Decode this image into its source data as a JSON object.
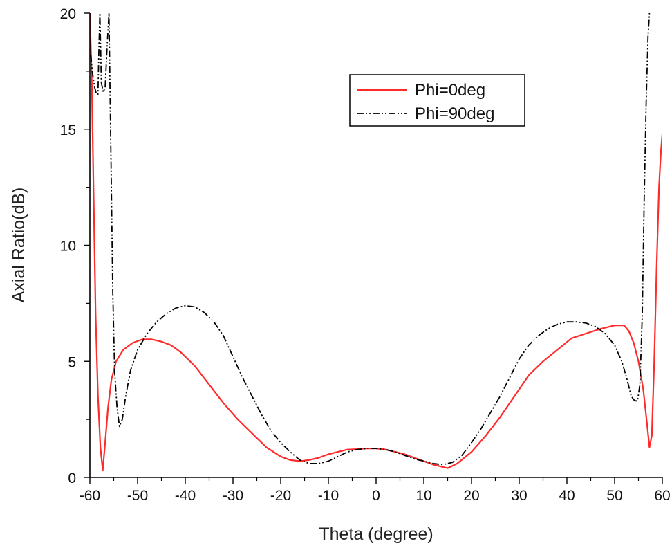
{
  "chart_data": {
    "type": "line",
    "xlabel": "Theta (degree)",
    "ylabel": "Axial Ratio(dB)",
    "xlim": [
      -60,
      60
    ],
    "ylim": [
      0,
      20
    ],
    "x_ticks": [
      -60,
      -50,
      -40,
      -30,
      -20,
      -10,
      0,
      10,
      20,
      30,
      40,
      50,
      60
    ],
    "y_ticks": [
      0,
      5,
      10,
      15,
      20
    ],
    "x_tick_labels": [
      "-60",
      "-50",
      "-40",
      "-30",
      "-20",
      "-10",
      "0",
      "10",
      "20",
      "30",
      "40",
      "50",
      "60"
    ],
    "y_tick_labels": [
      "0",
      "5",
      "10",
      "15",
      "20"
    ],
    "grid": false,
    "legend_position": "top-right",
    "series": [
      {
        "name": "Phi=0deg",
        "color": "#ff2a2a",
        "dash": "solid",
        "x": [
          -60,
          -59.6,
          -59.2,
          -58.8,
          -58.3,
          -57.8,
          -57.3,
          -56.8,
          -56.2,
          -55.5,
          -54.5,
          -53,
          -51,
          -49,
          -47,
          -45,
          -43,
          -41,
          -38,
          -35,
          -32,
          -29,
          -26,
          -23,
          -20,
          -18,
          -16,
          -14,
          -12,
          -10,
          -8,
          -6,
          -4,
          -2,
          0,
          2,
          4,
          6,
          8,
          10,
          12,
          14,
          15,
          17,
          20,
          23,
          26,
          29,
          32,
          35,
          38,
          41,
          44,
          47,
          50,
          52,
          53,
          54,
          55,
          56,
          56.8,
          57.3,
          57.8,
          58.3,
          58.8,
          59.3,
          59.7,
          60
        ],
        "y": [
          20,
          17,
          12,
          7,
          3.5,
          1.3,
          0.3,
          1.5,
          3,
          4.2,
          5,
          5.5,
          5.8,
          5.95,
          5.95,
          5.85,
          5.7,
          5.4,
          4.8,
          4,
          3.2,
          2.5,
          1.9,
          1.3,
          0.9,
          0.75,
          0.7,
          0.75,
          0.85,
          1,
          1.1,
          1.2,
          1.22,
          1.25,
          1.25,
          1.2,
          1.1,
          1,
          0.85,
          0.7,
          0.55,
          0.45,
          0.4,
          0.6,
          1.1,
          1.8,
          2.6,
          3.5,
          4.4,
          5,
          5.5,
          6,
          6.2,
          6.4,
          6.55,
          6.55,
          6.3,
          5.8,
          5,
          3.8,
          2.3,
          1.3,
          1.8,
          5,
          9,
          12.5,
          14,
          14.8
        ]
      },
      {
        "name": "Phi=90deg",
        "color": "#000000",
        "dash": "dash-dot-dot",
        "x": [
          -59.8,
          -59.5,
          -59,
          -58.6,
          -58.3,
          -58.1,
          -57.9,
          -57.6,
          -57.2,
          -56.8,
          -56.4,
          -56,
          -55.6,
          -55.2,
          -54.8,
          -54.3,
          -53.8,
          -53.2,
          -52.5,
          -51.5,
          -50,
          -48,
          -46,
          -44,
          -42,
          -40,
          -38,
          -36,
          -34,
          -32,
          -30,
          -28,
          -26,
          -24,
          -22,
          -20,
          -18,
          -16,
          -14,
          -12,
          -10,
          -8,
          -6,
          -4,
          -2,
          0,
          2,
          4,
          6,
          8,
          10,
          12,
          14,
          16,
          18,
          20,
          22,
          24,
          26,
          28,
          30,
          32,
          34,
          36,
          38,
          40,
          42,
          44,
          46,
          48,
          50,
          51.5,
          52.5,
          53.5,
          54.2,
          54.8,
          55.3,
          55.8,
          56.2,
          56.6,
          57,
          57.3
        ],
        "y": [
          18.2,
          17.5,
          16.8,
          16.5,
          16.5,
          18.5,
          20,
          17,
          16.6,
          16.8,
          18.5,
          20,
          14,
          8,
          4.5,
          3,
          2.2,
          2.5,
          3.5,
          4.6,
          5.5,
          6.2,
          6.7,
          7.05,
          7.3,
          7.4,
          7.35,
          7.1,
          6.7,
          6.1,
          5.2,
          4.3,
          3.5,
          2.7,
          2,
          1.5,
          1.1,
          0.75,
          0.6,
          0.6,
          0.7,
          0.9,
          1.1,
          1.2,
          1.25,
          1.25,
          1.2,
          1.1,
          0.95,
          0.8,
          0.7,
          0.6,
          0.55,
          0.65,
          0.95,
          1.5,
          2.1,
          2.8,
          3.5,
          4.3,
          5.1,
          5.7,
          6.1,
          6.4,
          6.6,
          6.7,
          6.7,
          6.65,
          6.5,
          6.2,
          5.7,
          5,
          4.3,
          3.5,
          3.3,
          3.3,
          4,
          7,
          12,
          16,
          19,
          20
        ]
      }
    ]
  }
}
